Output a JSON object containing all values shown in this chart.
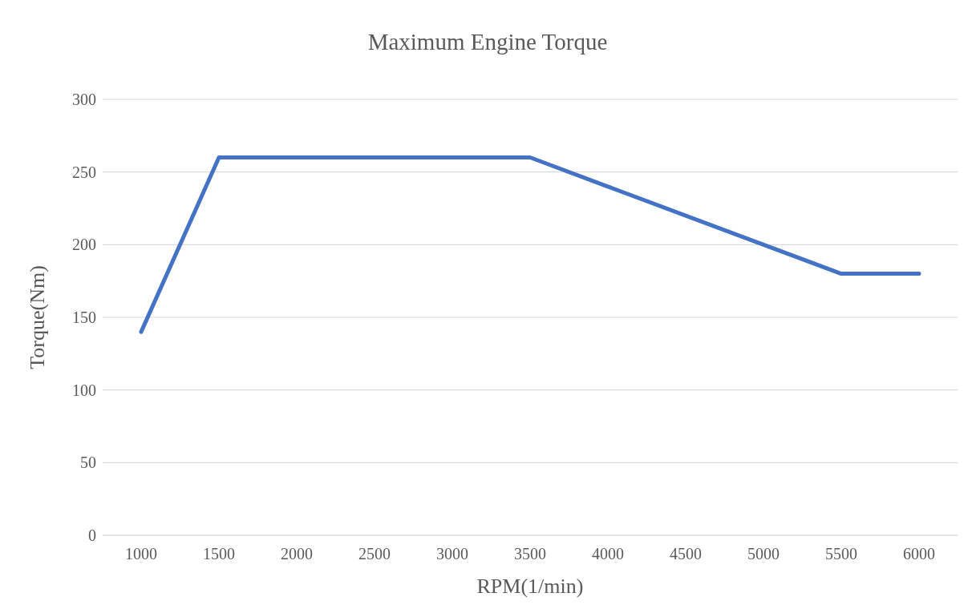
{
  "chart_data": {
    "type": "line",
    "title": "Maximum Engine Torque",
    "xlabel": "RPM(1/min)",
    "ylabel": "Torque(Nm)",
    "categories": [
      "1000",
      "1500",
      "2000",
      "2500",
      "3000",
      "3500",
      "4000",
      "4500",
      "5000",
      "5500",
      "6000"
    ],
    "series": [
      {
        "color": "#4472c4",
        "values": [
          140,
          260,
          260,
          260,
          260,
          260,
          240,
          220,
          200,
          180,
          180
        ]
      }
    ],
    "ylim": [
      0,
      300
    ],
    "yticks": [
      0,
      50,
      100,
      150,
      200,
      250,
      300
    ],
    "grid": "y",
    "legend": false,
    "marker": "none",
    "line_style": "solid"
  }
}
